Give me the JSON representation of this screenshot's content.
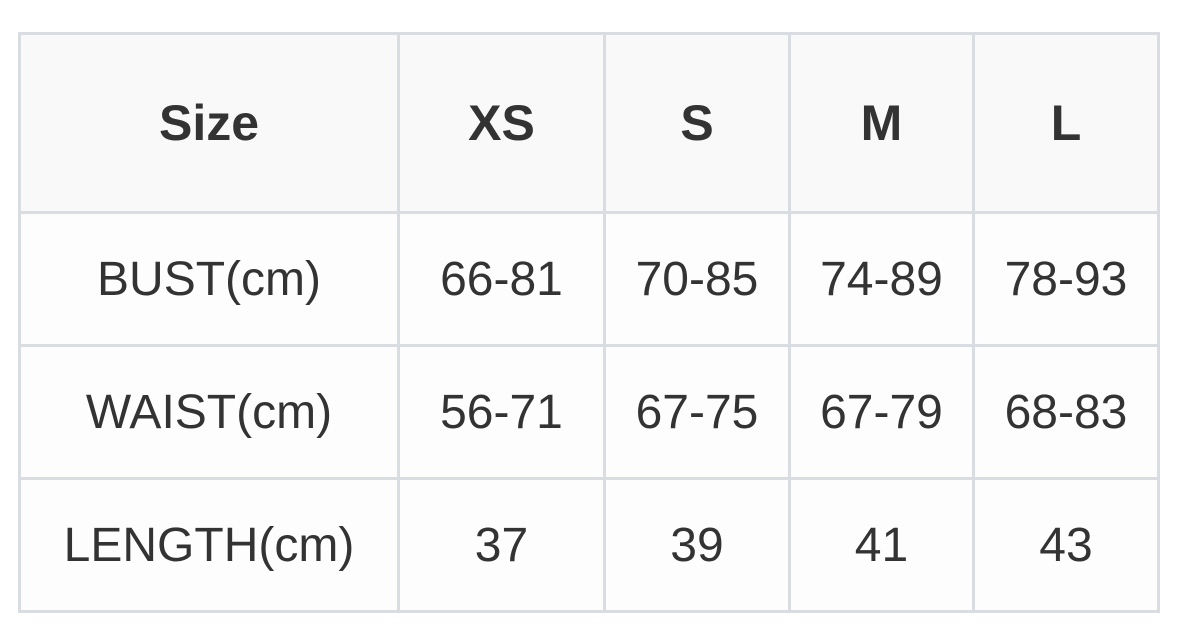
{
  "table": {
    "headers": [
      "Size",
      "XS",
      "S",
      "M",
      "L"
    ],
    "rows": [
      [
        "BUST(cm)",
        "66-81",
        "70-85",
        "74-89",
        "78-93"
      ],
      [
        "WAIST(cm)",
        "56-71",
        "67-75",
        "67-79",
        "68-83"
      ],
      [
        "LENGTH(cm)",
        "37",
        "39",
        "41",
        "43"
      ]
    ]
  }
}
